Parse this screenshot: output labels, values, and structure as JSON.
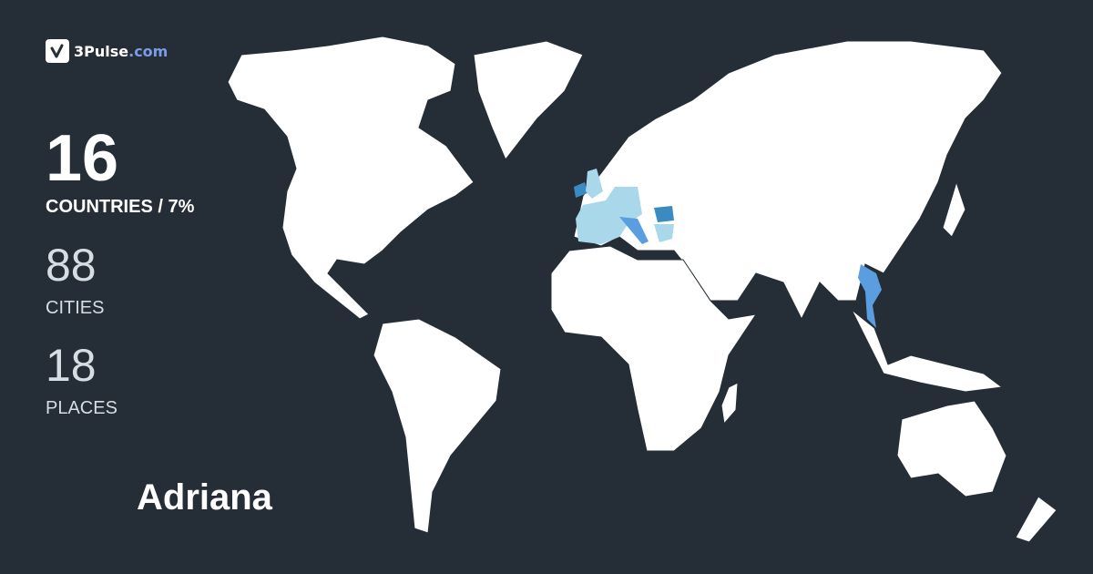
{
  "brand": {
    "name": "3Pulse",
    ".com": ".com",
    "suffix": ".com",
    "logo_icon": "checkmark-pulse-icon"
  },
  "stats": {
    "countries": {
      "value": "16",
      "label": "COUNTRIES / 7%"
    },
    "cities": {
      "value": "88",
      "label": "CITIES"
    },
    "places": {
      "value": "18",
      "label": "PLACES"
    }
  },
  "user": {
    "name": "Adriana"
  },
  "colors": {
    "background": "#252e36",
    "land": "#ffffff",
    "visited_light": "#a8d8ea",
    "visited_mid": "#5b9ee0",
    "visited_dark": "#3a8cc0",
    "brand_accent": "#7b9ce8"
  }
}
